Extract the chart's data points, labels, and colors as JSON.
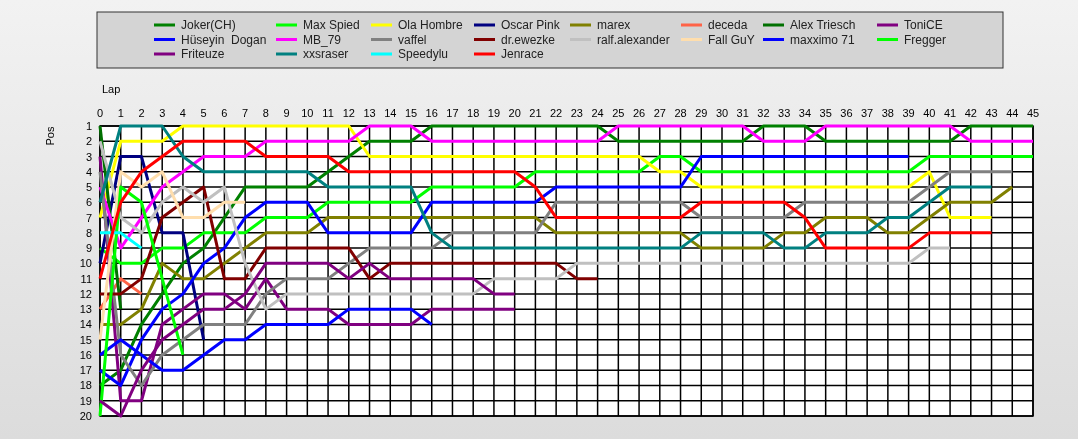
{
  "chart_data": {
    "type": "line",
    "xlabel": "Lap",
    "ylabel": "Pos",
    "x": [
      0,
      1,
      2,
      3,
      4,
      5,
      6,
      7,
      8,
      9,
      10,
      11,
      12,
      13,
      14,
      15,
      16,
      17,
      18,
      19,
      20,
      21,
      22,
      23,
      24,
      25,
      26,
      27,
      28,
      29,
      30,
      31,
      32,
      33,
      34,
      35,
      36,
      37,
      38,
      39,
      40,
      41,
      42,
      43,
      44,
      45
    ],
    "xlim": [
      0,
      45
    ],
    "xticks": [
      0,
      1,
      2,
      3,
      4,
      5,
      6,
      7,
      8,
      9,
      10,
      11,
      12,
      13,
      14,
      15,
      16,
      17,
      18,
      19,
      20,
      21,
      22,
      23,
      24,
      25,
      26,
      27,
      28,
      29,
      30,
      31,
      32,
      33,
      34,
      35,
      36,
      37,
      38,
      39,
      40,
      41,
      42,
      43,
      44,
      45
    ],
    "ylim": [
      20,
      1
    ],
    "yticks": [
      1,
      2,
      3,
      4,
      5,
      6,
      7,
      8,
      9,
      10,
      11,
      12,
      13,
      14,
      15,
      16,
      17,
      18,
      19,
      20
    ],
    "grid": true,
    "legend": "top",
    "marker": "none",
    "line_style": "solid",
    "series": [
      {
        "name": "Joker(CH)",
        "color": "#008000",
        "values": [
          18,
          17,
          14,
          12,
          10,
          9,
          7,
          5,
          5,
          5,
          5,
          4,
          3,
          2,
          2,
          2,
          1,
          1,
          1,
          1,
          1,
          1,
          1,
          1,
          1,
          2,
          2,
          2,
          2,
          2,
          2,
          2,
          1,
          1,
          1,
          2,
          2,
          2,
          2,
          2,
          2,
          2,
          1,
          1,
          1,
          1
        ]
      },
      {
        "name": "Max Spied",
        "color": "#00ff00",
        "values": [
          9,
          10,
          10,
          9,
          9,
          8,
          8,
          8,
          7,
          7,
          7,
          6,
          6,
          6,
          6,
          6,
          5,
          5,
          5,
          5,
          5,
          4,
          4,
          4,
          4,
          4,
          4,
          3,
          3,
          4,
          4,
          4,
          4,
          4,
          4,
          4,
          4,
          4,
          4,
          4,
          3,
          3,
          3,
          3,
          3,
          3
        ]
      },
      {
        "name": "Ola Hombre",
        "color": "#ffff00",
        "values": [
          7,
          2,
          2,
          2,
          1,
          1,
          1,
          1,
          1,
          1,
          1,
          1,
          1,
          3,
          3,
          3,
          3,
          3,
          3,
          3,
          3,
          3,
          3,
          3,
          3,
          3,
          3,
          4,
          4,
          5,
          5,
          5,
          5,
          5,
          5,
          5,
          5,
          5,
          5,
          5,
          4,
          7,
          7,
          7,
          null,
          null
        ]
      },
      {
        "name": "Oscar Pink",
        "color": "#000080",
        "values": [
          10,
          3,
          3,
          8,
          8,
          15,
          null,
          null,
          null,
          null,
          null,
          null,
          null,
          null,
          null,
          null,
          null,
          null,
          null,
          null,
          null,
          null,
          null,
          null,
          null,
          null,
          null,
          null,
          null,
          null,
          null,
          null,
          null,
          null,
          null,
          null,
          null,
          null,
          null,
          null,
          null,
          null,
          null,
          null,
          null,
          null
        ]
      },
      {
        "name": "marex",
        "color": "#808000",
        "values": [
          14,
          14,
          13,
          10,
          11,
          11,
          10,
          9,
          8,
          8,
          8,
          7,
          7,
          7,
          7,
          7,
          7,
          7,
          7,
          7,
          7,
          7,
          8,
          8,
          8,
          8,
          8,
          8,
          8,
          9,
          9,
          9,
          9,
          8,
          8,
          7,
          7,
          7,
          8,
          8,
          7,
          6,
          6,
          6,
          5,
          null
        ]
      },
      {
        "name": "deceda",
        "color": "#ff6347",
        "values": [
          13,
          11,
          12,
          null,
          null,
          null,
          null,
          null,
          null,
          null,
          null,
          null,
          null,
          null,
          null,
          null,
          null,
          null,
          null,
          null,
          null,
          null,
          null,
          null,
          null,
          null,
          null,
          null,
          null,
          null,
          null,
          null,
          null,
          null,
          null,
          null,
          null,
          null,
          null,
          null,
          null,
          null,
          null,
          null,
          null,
          null
        ]
      },
      {
        "name": "Alex Triesch",
        "color": "#007000",
        "values": [
          1,
          13,
          null,
          null,
          null,
          null,
          null,
          null,
          null,
          null,
          null,
          null,
          null,
          null,
          null,
          null,
          null,
          null,
          null,
          null,
          null,
          null,
          null,
          null,
          null,
          null,
          null,
          null,
          null,
          null,
          null,
          null,
          null,
          null,
          null,
          null,
          null,
          null,
          null,
          null,
          null,
          null,
          null,
          null,
          null,
          null
        ]
      },
      {
        "name": "ToniCE",
        "color": "#800080",
        "values": [
          3,
          19,
          19,
          14,
          13,
          12,
          12,
          13,
          11,
          13,
          13,
          13,
          14,
          14,
          14,
          14,
          13,
          13,
          13,
          13,
          13,
          null,
          null,
          null,
          null,
          null,
          null,
          null,
          null,
          null,
          null,
          null,
          null,
          null,
          null,
          null,
          null,
          null,
          null,
          null,
          null,
          null,
          null,
          null,
          null,
          null
        ]
      },
      {
        "name": "Hüseyin  Dogan",
        "color": "#0000ff",
        "values": [
          17,
          18,
          15,
          13,
          12,
          10,
          9,
          7,
          6,
          6,
          6,
          8,
          8,
          8,
          8,
          8,
          6,
          6,
          6,
          6,
          6,
          6,
          5,
          5,
          5,
          5,
          5,
          5,
          5,
          3,
          3,
          3,
          3,
          3,
          3,
          3,
          3,
          3,
          3,
          3,
          null,
          null,
          null,
          null,
          null,
          null
        ]
      },
      {
        "name": "MB_79",
        "color": "#ff00ff",
        "values": [
          5,
          9,
          7,
          5,
          4,
          3,
          3,
          3,
          2,
          2,
          2,
          2,
          2,
          1,
          1,
          1,
          2,
          2,
          2,
          2,
          2,
          2,
          2,
          2,
          2,
          1,
          1,
          1,
          1,
          1,
          1,
          1,
          2,
          2,
          2,
          1,
          1,
          1,
          1,
          1,
          1,
          1,
          2,
          2,
          2,
          2
        ]
      },
      {
        "name": "vaffel",
        "color": "#808080",
        "values": [
          4,
          16,
          18,
          16,
          15,
          14,
          14,
          14,
          12,
          11,
          11,
          11,
          10,
          9,
          9,
          9,
          9,
          8,
          8,
          8,
          8,
          8,
          6,
          6,
          6,
          6,
          6,
          6,
          6,
          7,
          7,
          7,
          7,
          7,
          6,
          6,
          6,
          6,
          6,
          6,
          5,
          4,
          4,
          4,
          4,
          null
        ]
      },
      {
        "name": "dr.ewezke",
        "color": "#800000",
        "values": [
          12,
          12,
          11,
          7,
          6,
          5,
          11,
          11,
          9,
          9,
          9,
          9,
          9,
          11,
          10,
          10,
          10,
          10,
          10,
          10,
          10,
          10,
          10,
          11,
          11,
          null,
          null,
          null,
          null,
          null,
          null,
          null,
          null,
          null,
          null,
          null,
          null,
          null,
          null,
          null,
          null,
          null,
          null,
          null,
          null,
          null
        ]
      },
      {
        "name": "ralf.alexander",
        "color": "#c0c0c0",
        "values": [
          2,
          7,
          8,
          6,
          5,
          6,
          5,
          10,
          13,
          12,
          12,
          12,
          12,
          12,
          12,
          12,
          12,
          12,
          12,
          11,
          11,
          11,
          11,
          10,
          10,
          10,
          10,
          10,
          10,
          10,
          10,
          10,
          10,
          10,
          10,
          10,
          10,
          10,
          10,
          10,
          9,
          9,
          null,
          null,
          null,
          null
        ]
      },
      {
        "name": "Fall GuY",
        "color": "#ffdead",
        "values": [
          15,
          4,
          5,
          4,
          7,
          7,
          6,
          6,
          null,
          null,
          null,
          null,
          null,
          null,
          null,
          null,
          null,
          null,
          null,
          null,
          null,
          null,
          null,
          null,
          null,
          null,
          null,
          null,
          null,
          null,
          null,
          null,
          null,
          null,
          null,
          null,
          null,
          null,
          null,
          null,
          null,
          null,
          null,
          null,
          null,
          null
        ]
      },
      {
        "name": "maxximo 71",
        "color": "#0000ff",
        "values": [
          16,
          15,
          16,
          17,
          17,
          16,
          15,
          15,
          14,
          14,
          14,
          14,
          13,
          13,
          13,
          13,
          14,
          null,
          null,
          null,
          null,
          null,
          null,
          null,
          null,
          null,
          null,
          null,
          null,
          null,
          null,
          null,
          null,
          null,
          null,
          null,
          null,
          null,
          null,
          null,
          null,
          null,
          null,
          null,
          null,
          null
        ]
      },
      {
        "name": "Fregger",
        "color": "#00ff00",
        "values": [
          20,
          5,
          6,
          11,
          16,
          null,
          null,
          null,
          null,
          null,
          null,
          null,
          null,
          null,
          null,
          null,
          null,
          null,
          null,
          null,
          null,
          null,
          null,
          null,
          null,
          null,
          null,
          null,
          null,
          null,
          null,
          null,
          null,
          null,
          null,
          null,
          null,
          null,
          null,
          null,
          null,
          null,
          null,
          null,
          null,
          null
        ]
      },
      {
        "name": "Friteuze",
        "color": "#800080",
        "values": [
          19,
          20,
          17,
          15,
          14,
          13,
          13,
          12,
          10,
          10,
          10,
          10,
          11,
          10,
          11,
          11,
          11,
          11,
          11,
          12,
          12,
          null,
          null,
          null,
          null,
          null,
          null,
          null,
          null,
          null,
          null,
          null,
          null,
          null,
          null,
          null,
          null,
          null,
          null,
          null,
          null,
          null,
          null,
          null,
          null,
          null
        ]
      },
      {
        "name": "xxsraser",
        "color": "#008080",
        "values": [
          6,
          1,
          1,
          1,
          3,
          4,
          4,
          4,
          4,
          4,
          4,
          5,
          5,
          5,
          5,
          5,
          8,
          9,
          9,
          9,
          9,
          9,
          9,
          9,
          9,
          9,
          9,
          9,
          9,
          8,
          8,
          8,
          8,
          9,
          9,
          8,
          8,
          8,
          7,
          7,
          6,
          5,
          5,
          5,
          null,
          null
        ]
      },
      {
        "name": "Speedylu",
        "color": "#00ffff",
        "values": [
          8,
          8,
          9,
          null,
          null,
          null,
          null,
          null,
          null,
          null,
          null,
          null,
          null,
          null,
          null,
          null,
          null,
          null,
          null,
          null,
          null,
          null,
          null,
          null,
          null,
          null,
          null,
          null,
          null,
          null,
          null,
          null,
          null,
          null,
          null,
          null,
          null,
          null,
          null,
          null,
          null,
          null,
          null,
          null,
          null,
          null
        ]
      },
      {
        "name": "Jenrace",
        "color": "#ff0000",
        "values": [
          11,
          6,
          4,
          3,
          2,
          2,
          2,
          2,
          3,
          3,
          3,
          3,
          4,
          4,
          4,
          4,
          4,
          4,
          4,
          4,
          4,
          5,
          7,
          7,
          7,
          7,
          7,
          7,
          7,
          6,
          6,
          6,
          6,
          6,
          7,
          9,
          9,
          9,
          9,
          9,
          8,
          8,
          8,
          8,
          null,
          null
        ]
      }
    ]
  }
}
